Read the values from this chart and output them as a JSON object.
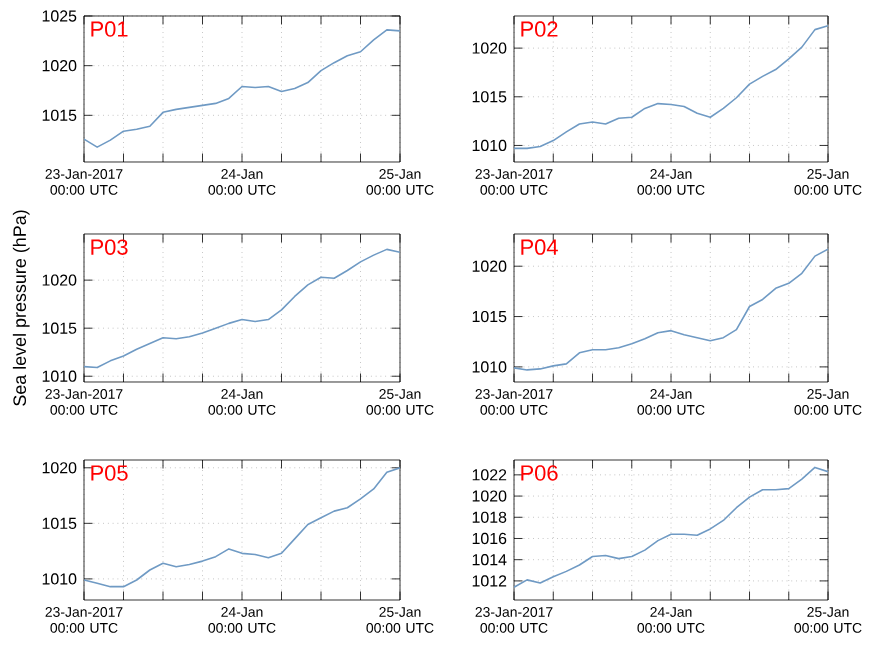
{
  "chart_data": [
    {
      "type": "line",
      "annotations": [
        "P01"
      ],
      "color": "#6f9ac4",
      "grid": true,
      "x": [
        "2017-01-23T00:00",
        "2017-01-23T02:00",
        "2017-01-23T04:00",
        "2017-01-23T06:00",
        "2017-01-23T08:00",
        "2017-01-23T10:00",
        "2017-01-23T12:00",
        "2017-01-23T14:00",
        "2017-01-23T16:00",
        "2017-01-23T18:00",
        "2017-01-23T20:00",
        "2017-01-23T22:00",
        "2017-01-24T00:00",
        "2017-01-24T02:00",
        "2017-01-24T04:00",
        "2017-01-24T06:00",
        "2017-01-24T08:00",
        "2017-01-24T10:00",
        "2017-01-24T12:00",
        "2017-01-24T14:00",
        "2017-01-24T16:00",
        "2017-01-24T18:00",
        "2017-01-24T20:00",
        "2017-01-24T22:00",
        "2017-01-25T00:00"
      ],
      "values": [
        1012.6,
        1011.8,
        1012.5,
        1013.4,
        1013.6,
        1013.9,
        1015.3,
        1015.6,
        1015.8,
        1016.0,
        1016.2,
        1016.7,
        1017.9,
        1017.8,
        1017.9,
        1017.4,
        1017.7,
        1018.3,
        1019.5,
        1020.3,
        1021.0,
        1021.4,
        1022.6,
        1023.6,
        1023.5
      ],
      "xlim": [
        "2017-01-23T00:00",
        "2017-01-25T00:00"
      ],
      "xticks": [
        {
          "value": "2017-01-23T00:00",
          "label": "23-Jan-2017 00:00 UTC"
        },
        {
          "value": "2017-01-23T06:00",
          "label": null
        },
        {
          "value": "2017-01-23T12:00",
          "label": null
        },
        {
          "value": "2017-01-23T18:00",
          "label": null
        },
        {
          "value": "2017-01-24T00:00",
          "label": "24-Jan 00:00 UTC"
        },
        {
          "value": "2017-01-24T06:00",
          "label": null
        },
        {
          "value": "2017-01-24T12:00",
          "label": null
        },
        {
          "value": "2017-01-24T18:00",
          "label": null
        },
        {
          "value": "2017-01-25T00:00",
          "label": "25-Jan 00:00 UTC"
        }
      ],
      "ylim": [
        1010.3,
        1025
      ],
      "yticks": [
        1015,
        1020,
        1025
      ]
    },
    {
      "type": "line",
      "annotations": [
        "P02"
      ],
      "color": "#6f9ac4",
      "grid": true,
      "x": [
        "2017-01-23T00:00",
        "2017-01-23T02:00",
        "2017-01-23T04:00",
        "2017-01-23T06:00",
        "2017-01-23T08:00",
        "2017-01-23T10:00",
        "2017-01-23T12:00",
        "2017-01-23T14:00",
        "2017-01-23T16:00",
        "2017-01-23T18:00",
        "2017-01-23T20:00",
        "2017-01-23T22:00",
        "2017-01-24T00:00",
        "2017-01-24T02:00",
        "2017-01-24T04:00",
        "2017-01-24T06:00",
        "2017-01-24T08:00",
        "2017-01-24T10:00",
        "2017-01-24T12:00",
        "2017-01-24T14:00",
        "2017-01-24T16:00",
        "2017-01-24T18:00",
        "2017-01-24T20:00",
        "2017-01-24T22:00",
        "2017-01-25T00:00"
      ],
      "values": [
        1009.7,
        1009.7,
        1009.9,
        1010.5,
        1011.4,
        1012.2,
        1012.4,
        1012.2,
        1012.8,
        1012.9,
        1013.8,
        1014.3,
        1014.2,
        1014.0,
        1013.3,
        1012.9,
        1013.8,
        1014.9,
        1016.3,
        1017.1,
        1017.8,
        1018.9,
        1020.1,
        1021.9,
        1022.3
      ],
      "xlim": [
        "2017-01-23T00:00",
        "2017-01-25T00:00"
      ],
      "xticks": [
        {
          "value": "2017-01-23T00:00",
          "label": "23-Jan-2017 00:00 UTC"
        },
        {
          "value": "2017-01-23T06:00",
          "label": null
        },
        {
          "value": "2017-01-23T12:00",
          "label": null
        },
        {
          "value": "2017-01-23T18:00",
          "label": null
        },
        {
          "value": "2017-01-24T00:00",
          "label": "24-Jan 00:00 UTC"
        },
        {
          "value": "2017-01-24T06:00",
          "label": null
        },
        {
          "value": "2017-01-24T12:00",
          "label": null
        },
        {
          "value": "2017-01-24T18:00",
          "label": null
        },
        {
          "value": "2017-01-25T00:00",
          "label": "25-Jan 00:00 UTC"
        }
      ],
      "ylim": [
        1008.3,
        1023.3
      ],
      "yticks": [
        1010,
        1015,
        1020
      ]
    },
    {
      "type": "line",
      "annotations": [
        "P03"
      ],
      "color": "#6f9ac4",
      "grid": true,
      "ylabel": "Sea level pressure (hPa)",
      "x": [
        "2017-01-23T00:00",
        "2017-01-23T02:00",
        "2017-01-23T04:00",
        "2017-01-23T06:00",
        "2017-01-23T08:00",
        "2017-01-23T10:00",
        "2017-01-23T12:00",
        "2017-01-23T14:00",
        "2017-01-23T16:00",
        "2017-01-23T18:00",
        "2017-01-23T20:00",
        "2017-01-23T22:00",
        "2017-01-24T00:00",
        "2017-01-24T02:00",
        "2017-01-24T04:00",
        "2017-01-24T06:00",
        "2017-01-24T08:00",
        "2017-01-24T10:00",
        "2017-01-24T12:00",
        "2017-01-24T14:00",
        "2017-01-24T16:00",
        "2017-01-24T18:00",
        "2017-01-24T20:00",
        "2017-01-24T22:00",
        "2017-01-25T00:00"
      ],
      "values": [
        1011.0,
        1010.9,
        1011.6,
        1012.1,
        1012.8,
        1013.4,
        1014.0,
        1013.9,
        1014.1,
        1014.5,
        1015.0,
        1015.5,
        1015.9,
        1015.7,
        1015.9,
        1016.9,
        1018.3,
        1019.5,
        1020.3,
        1020.2,
        1021.0,
        1021.9,
        1022.6,
        1023.2,
        1022.9
      ],
      "xlim": [
        "2017-01-23T00:00",
        "2017-01-25T00:00"
      ],
      "xticks": [
        {
          "value": "2017-01-23T00:00",
          "label": "23-Jan-2017 00:00 UTC"
        },
        {
          "value": "2017-01-23T06:00",
          "label": null
        },
        {
          "value": "2017-01-23T12:00",
          "label": null
        },
        {
          "value": "2017-01-23T18:00",
          "label": null
        },
        {
          "value": "2017-01-24T00:00",
          "label": "24-Jan 00:00 UTC"
        },
        {
          "value": "2017-01-24T06:00",
          "label": null
        },
        {
          "value": "2017-01-24T12:00",
          "label": null
        },
        {
          "value": "2017-01-24T18:00",
          "label": null
        },
        {
          "value": "2017-01-25T00:00",
          "label": "25-Jan 00:00 UTC"
        }
      ],
      "ylim": [
        1009.4,
        1024.8
      ],
      "yticks": [
        1010,
        1015,
        1020
      ]
    },
    {
      "type": "line",
      "annotations": [
        "P04"
      ],
      "color": "#6f9ac4",
      "grid": true,
      "x": [
        "2017-01-23T00:00",
        "2017-01-23T02:00",
        "2017-01-23T04:00",
        "2017-01-23T06:00",
        "2017-01-23T08:00",
        "2017-01-23T10:00",
        "2017-01-23T12:00",
        "2017-01-23T14:00",
        "2017-01-23T16:00",
        "2017-01-23T18:00",
        "2017-01-23T20:00",
        "2017-01-23T22:00",
        "2017-01-24T00:00",
        "2017-01-24T02:00",
        "2017-01-24T04:00",
        "2017-01-24T06:00",
        "2017-01-24T08:00",
        "2017-01-24T10:00",
        "2017-01-24T12:00",
        "2017-01-24T14:00",
        "2017-01-24T16:00",
        "2017-01-24T18:00",
        "2017-01-24T20:00",
        "2017-01-24T22:00",
        "2017-01-25T00:00"
      ],
      "values": [
        1009.9,
        1009.7,
        1009.8,
        1010.1,
        1010.3,
        1011.4,
        1011.7,
        1011.7,
        1011.9,
        1012.3,
        1012.8,
        1013.4,
        1013.6,
        1013.2,
        1012.9,
        1012.6,
        1012.9,
        1013.7,
        1016.0,
        1016.7,
        1017.8,
        1018.3,
        1019.3,
        1021.0,
        1021.7
      ],
      "xlim": [
        "2017-01-23T00:00",
        "2017-01-25T00:00"
      ],
      "xticks": [
        {
          "value": "2017-01-23T00:00",
          "label": "23-Jan-2017 00:00 UTC"
        },
        {
          "value": "2017-01-23T06:00",
          "label": null
        },
        {
          "value": "2017-01-23T12:00",
          "label": null
        },
        {
          "value": "2017-01-23T18:00",
          "label": null
        },
        {
          "value": "2017-01-24T00:00",
          "label": "24-Jan 00:00 UTC"
        },
        {
          "value": "2017-01-24T06:00",
          "label": null
        },
        {
          "value": "2017-01-24T12:00",
          "label": null
        },
        {
          "value": "2017-01-24T18:00",
          "label": null
        },
        {
          "value": "2017-01-25T00:00",
          "label": "25-Jan 00:00 UTC"
        }
      ],
      "ylim": [
        1008.5,
        1023.2
      ],
      "yticks": [
        1010,
        1015,
        1020
      ]
    },
    {
      "type": "line",
      "annotations": [
        "P05"
      ],
      "color": "#6f9ac4",
      "grid": true,
      "x": [
        "2017-01-23T00:00",
        "2017-01-23T02:00",
        "2017-01-23T04:00",
        "2017-01-23T06:00",
        "2017-01-23T08:00",
        "2017-01-23T10:00",
        "2017-01-23T12:00",
        "2017-01-23T14:00",
        "2017-01-23T16:00",
        "2017-01-23T18:00",
        "2017-01-23T20:00",
        "2017-01-23T22:00",
        "2017-01-24T00:00",
        "2017-01-24T02:00",
        "2017-01-24T04:00",
        "2017-01-24T06:00",
        "2017-01-24T08:00",
        "2017-01-24T10:00",
        "2017-01-24T12:00",
        "2017-01-24T14:00",
        "2017-01-24T16:00",
        "2017-01-24T18:00",
        "2017-01-24T20:00",
        "2017-01-24T22:00",
        "2017-01-25T00:00"
      ],
      "values": [
        1009.9,
        1009.6,
        1009.3,
        1009.3,
        1009.9,
        1010.8,
        1011.4,
        1011.1,
        1011.3,
        1011.6,
        1012.0,
        1012.7,
        1012.3,
        1012.2,
        1011.9,
        1012.3,
        1013.6,
        1014.9,
        1015.5,
        1016.1,
        1016.4,
        1017.2,
        1018.1,
        1019.6,
        1020.0
      ],
      "xlim": [
        "2017-01-23T00:00",
        "2017-01-25T00:00"
      ],
      "xticks": [
        {
          "value": "2017-01-23T00:00",
          "label": "23-Jan-2017 00:00 UTC"
        },
        {
          "value": "2017-01-23T06:00",
          "label": null
        },
        {
          "value": "2017-01-23T12:00",
          "label": null
        },
        {
          "value": "2017-01-23T18:00",
          "label": null
        },
        {
          "value": "2017-01-24T00:00",
          "label": "24-Jan 00:00 UTC"
        },
        {
          "value": "2017-01-24T06:00",
          "label": null
        },
        {
          "value": "2017-01-24T12:00",
          "label": null
        },
        {
          "value": "2017-01-24T18:00",
          "label": null
        },
        {
          "value": "2017-01-25T00:00",
          "label": "25-Jan 00:00 UTC"
        }
      ],
      "ylim": [
        1008.1,
        1020.7
      ],
      "yticks": [
        1010,
        1015,
        1020
      ]
    },
    {
      "type": "line",
      "annotations": [
        "P06"
      ],
      "color": "#6f9ac4",
      "grid": true,
      "x": [
        "2017-01-23T00:00",
        "2017-01-23T02:00",
        "2017-01-23T04:00",
        "2017-01-23T06:00",
        "2017-01-23T08:00",
        "2017-01-23T10:00",
        "2017-01-23T12:00",
        "2017-01-23T14:00",
        "2017-01-23T16:00",
        "2017-01-23T18:00",
        "2017-01-23T20:00",
        "2017-01-23T22:00",
        "2017-01-24T00:00",
        "2017-01-24T02:00",
        "2017-01-24T04:00",
        "2017-01-24T06:00",
        "2017-01-24T08:00",
        "2017-01-24T10:00",
        "2017-01-24T12:00",
        "2017-01-24T14:00",
        "2017-01-24T16:00",
        "2017-01-24T18:00",
        "2017-01-24T20:00",
        "2017-01-24T22:00",
        "2017-01-25T00:00"
      ],
      "values": [
        1011.4,
        1012.1,
        1011.8,
        1012.4,
        1012.9,
        1013.5,
        1014.3,
        1014.4,
        1014.1,
        1014.3,
        1014.9,
        1015.8,
        1016.4,
        1016.4,
        1016.3,
        1016.9,
        1017.7,
        1018.9,
        1019.9,
        1020.6,
        1020.6,
        1020.7,
        1021.6,
        1022.7,
        1022.3
      ],
      "xlim": [
        "2017-01-23T00:00",
        "2017-01-25T00:00"
      ],
      "xticks": [
        {
          "value": "2017-01-23T00:00",
          "label": "23-Jan-2017 00:00 UTC"
        },
        {
          "value": "2017-01-23T06:00",
          "label": null
        },
        {
          "value": "2017-01-23T12:00",
          "label": null
        },
        {
          "value": "2017-01-23T18:00",
          "label": null
        },
        {
          "value": "2017-01-24T00:00",
          "label": "24-Jan 00:00 UTC"
        },
        {
          "value": "2017-01-24T06:00",
          "label": null
        },
        {
          "value": "2017-01-24T12:00",
          "label": null
        },
        {
          "value": "2017-01-24T18:00",
          "label": null
        },
        {
          "value": "2017-01-25T00:00",
          "label": "25-Jan 00:00 UTC"
        }
      ],
      "ylim": [
        1010.2,
        1023.4
      ],
      "yticks": [
        1012,
        1014,
        1016,
        1018,
        1020,
        1022
      ]
    }
  ]
}
